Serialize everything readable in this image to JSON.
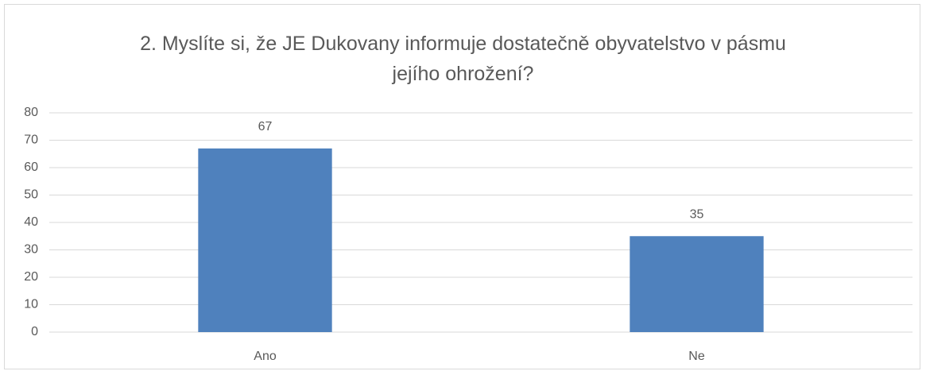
{
  "chart_data": {
    "type": "bar",
    "title": "2. Myslíte si, že JE Dukovany informuje dostatečně obyvatelstvo v pásmu jejího ohrožení?",
    "categories": [
      "Ano",
      "Ne"
    ],
    "values": [
      67,
      35
    ],
    "color": "#4f81bd",
    "ylim": [
      0,
      80
    ],
    "yticks": [
      0,
      10,
      20,
      30,
      40,
      50,
      60,
      70,
      80
    ],
    "grid": true
  }
}
